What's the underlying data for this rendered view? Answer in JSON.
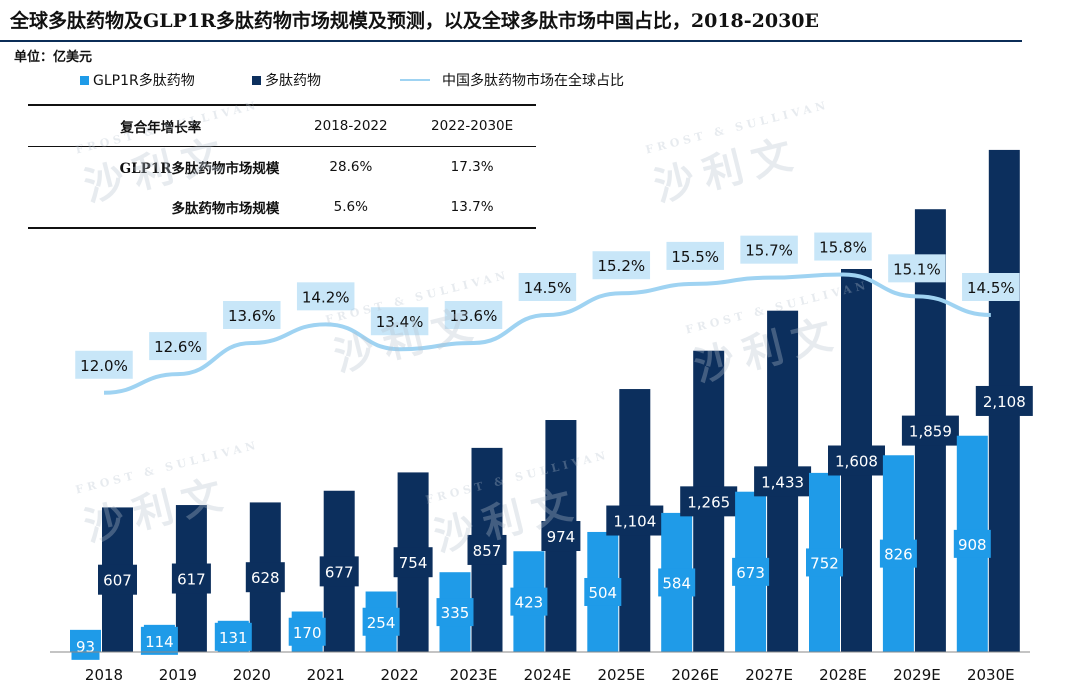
{
  "title": "全球多肽药物及GLP1R多肽药物市场规模及预测，以及全球多肽市场中国占比，2018-2030E",
  "unit": "单位：亿美元",
  "legend": {
    "glp1r": "GLP1R多肽药物",
    "peptide": "多肽药物",
    "china_share": "中国多肽药物市场在全球占比"
  },
  "colors": {
    "glp1r": "#1f9be8",
    "peptide": "#0c2f5d",
    "line": "#9fd3f2",
    "line_label_bg": "#c8e6f8",
    "rule": "#0b2d57"
  },
  "table": {
    "headers": [
      "复合年增长率",
      "2018-2022",
      "2022-2030E"
    ],
    "rows": [
      {
        "label": "GLP1R多肽药物市场规模",
        "v1": "28.6%",
        "v2": "17.3%"
      },
      {
        "label": "多肽药物市场规模",
        "v1": "5.6%",
        "v2": "13.7%"
      }
    ]
  },
  "watermark": {
    "cn": "沙利文",
    "en": "FROST & SULLIVAN"
  },
  "chart_data": {
    "type": "bar",
    "categories": [
      "2018",
      "2019",
      "2020",
      "2021",
      "2022",
      "2023E",
      "2024E",
      "2025E",
      "2026E",
      "2027E",
      "2028E",
      "2029E",
      "2030E"
    ],
    "series": [
      {
        "name": "GLP1R多肽药物",
        "values": [
          93,
          114,
          131,
          170,
          254,
          335,
          423,
          504,
          584,
          673,
          752,
          826,
          908
        ],
        "labels": [
          "93",
          "114",
          "131",
          "170",
          "254",
          "335",
          "423",
          "504",
          "584",
          "673",
          "752",
          "826",
          "908"
        ]
      },
      {
        "name": "多肽药物",
        "values": [
          607,
          617,
          628,
          677,
          754,
          857,
          974,
          1104,
          1265,
          1433,
          1608,
          1859,
          2108
        ],
        "labels": [
          "607",
          "617",
          "628",
          "677",
          "754",
          "857",
          "974",
          "1,104",
          "1,265",
          "1,433",
          "1,608",
          "1,859",
          "2,108"
        ]
      },
      {
        "name": "中国多肽药物市场在全球占比",
        "type": "line",
        "values": [
          12.0,
          12.6,
          13.6,
          14.2,
          13.4,
          13.6,
          14.5,
          15.2,
          15.5,
          15.7,
          15.8,
          15.1,
          14.5
        ],
        "labels": [
          "12.0%",
          "12.6%",
          "13.6%",
          "14.2%",
          "13.4%",
          "13.6%",
          "14.5%",
          "15.2%",
          "15.5%",
          "15.7%",
          "15.8%",
          "15.1%",
          "14.5%"
        ]
      }
    ],
    "ylim": [
      0,
      2200
    ],
    "line_ylim": [
      10,
      19
    ],
    "legend_position": "top-left",
    "grid": false
  }
}
